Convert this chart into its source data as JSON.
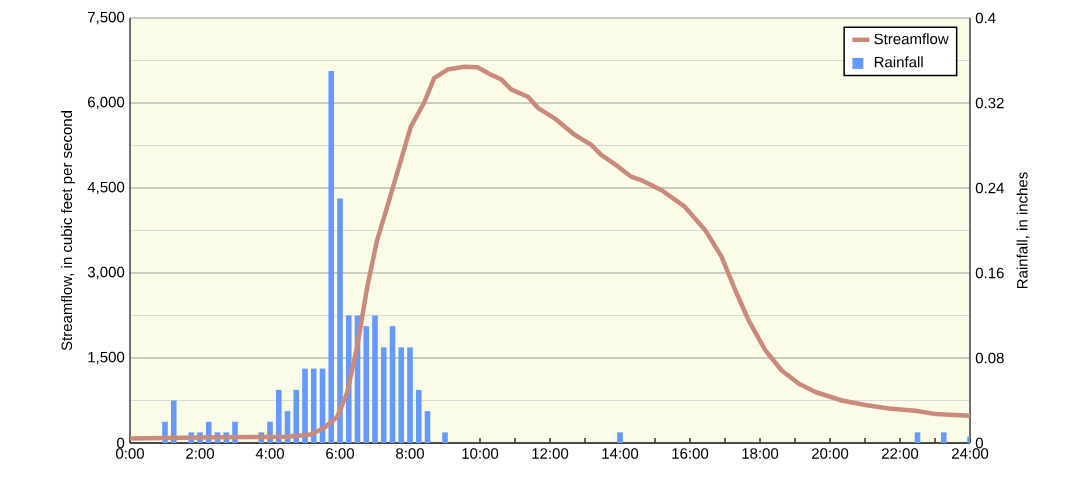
{
  "chart_data": {
    "type": "line",
    "xlabel": null,
    "ylabel": "Streamflow, in cubic feet per second",
    "y2label": "Rainfall, in inches",
    "xlim": [
      0,
      24
    ],
    "xticks": [
      {
        "value": 0,
        "label": "0:00"
      },
      {
        "value": 1,
        "label": null
      },
      {
        "value": 2,
        "label": "2:00"
      },
      {
        "value": 3,
        "label": null
      },
      {
        "value": 4,
        "label": "4:00"
      },
      {
        "value": 5,
        "label": null
      },
      {
        "value": 6,
        "label": "6:00"
      },
      {
        "value": 7,
        "label": null
      },
      {
        "value": 8,
        "label": "8:00"
      },
      {
        "value": 9,
        "label": null
      },
      {
        "value": 10,
        "label": "10:00"
      },
      {
        "value": 11,
        "label": null
      },
      {
        "value": 12,
        "label": "12:00"
      },
      {
        "value": 13,
        "label": null
      },
      {
        "value": 14,
        "label": "14:00"
      },
      {
        "value": 15,
        "label": null
      },
      {
        "value": 16,
        "label": "16:00"
      },
      {
        "value": 17,
        "label": null
      },
      {
        "value": 18,
        "label": "18:00"
      },
      {
        "value": 19,
        "label": null
      },
      {
        "value": 20,
        "label": "20:00"
      },
      {
        "value": 21,
        "label": null
      },
      {
        "value": 22,
        "label": "22:00"
      },
      {
        "value": 23,
        "label": null
      },
      {
        "value": 24,
        "label": "24:00"
      }
    ],
    "ylim": [
      0,
      7500
    ],
    "yticks": [
      0,
      {
        "value": 750,
        "label": null
      },
      {
        "value": 1500,
        "label": "1,500"
      },
      {
        "value": 2250,
        "label": null
      },
      {
        "value": 3000,
        "label": "3,000"
      },
      {
        "value": 3750,
        "label": null
      },
      {
        "value": 4500,
        "label": "4,500"
      },
      {
        "value": 5250,
        "label": null
      },
      {
        "value": 6000,
        "label": "6,000"
      },
      {
        "value": 6750,
        "label": null
      },
      {
        "value": 7500,
        "label": "7,500"
      }
    ],
    "y2lim": [
      0,
      0.4
    ],
    "y2ticks": [
      0,
      0.08,
      0.16,
      0.24,
      0.32,
      0.4
    ],
    "grid": "y",
    "legend": "top right",
    "marker": "none",
    "line_style": "solid",
    "series": [
      {
        "name": "Streamflow",
        "color": "#c98a7c",
        "x": [
          0,
          2.5,
          4.5,
          5.16,
          5.53,
          5.92,
          6.2,
          6.49,
          6.78,
          7.06,
          7.35,
          7.63,
          8.02,
          8.4,
          8.69,
          9.07,
          9.55,
          9.93,
          10.31,
          10.6,
          10.89,
          11.37,
          11.66,
          12.13,
          12.7,
          13.18,
          13.47,
          13.94,
          14.32,
          14.6,
          15.19,
          15.85,
          16.43,
          16.9,
          17.29,
          17.67,
          18.15,
          18.62,
          19.1,
          19.58,
          20.34,
          21.01,
          21.68,
          22.44,
          23.02,
          24
        ],
        "values": [
          80,
          100,
          110,
          150,
          260,
          460,
          880,
          1700,
          2760,
          3580,
          4170,
          4760,
          5580,
          6000,
          6440,
          6590,
          6640,
          6630,
          6500,
          6420,
          6240,
          6110,
          5910,
          5730,
          5440,
          5260,
          5080,
          4880,
          4700,
          4640,
          4460,
          4170,
          3760,
          3290,
          2700,
          2170,
          1640,
          1280,
          1050,
          900,
          750,
          670,
          610,
          570,
          510,
          480
        ]
      },
      {
        "name": "Rainfall",
        "type": "bar",
        "axis": "y2",
        "color": "#6699ff",
        "x": [
          1,
          1.25,
          1.75,
          2,
          2.25,
          2.5,
          2.75,
          3,
          3.75,
          4,
          4.25,
          4.5,
          4.75,
          5,
          5.25,
          5.5,
          5.75,
          6,
          6.25,
          6.5,
          6.75,
          7,
          7.25,
          7.5,
          7.75,
          8,
          8.25,
          8.5,
          9,
          14,
          22.5,
          23.25,
          24
        ],
        "values": [
          0.02,
          0.04,
          0.01,
          0.01,
          0.02,
          0.01,
          0.01,
          0.02,
          0.01,
          0.02,
          0.05,
          0.03,
          0.05,
          0.07,
          0.07,
          0.07,
          0.35,
          0.23,
          0.12,
          0.12,
          0.11,
          0.12,
          0.09,
          0.11,
          0.09,
          0.09,
          0.05,
          0.03,
          0.01,
          0.01,
          0.01,
          0.01,
          0.006
        ]
      }
    ]
  }
}
